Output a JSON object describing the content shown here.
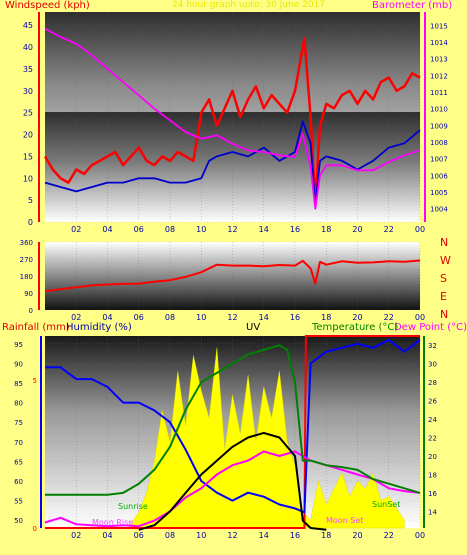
{
  "title_text": "24 hour graph upto: 30 June 2017",
  "labels": {
    "windspeed": "Windspeed (kph)",
    "barometer": "Barometer (mb)",
    "rainfall": "Rainfall (mm)",
    "humidity": "Humidity (%)",
    "uv": "UV",
    "temperature": "Temperature (°C)",
    "dewpoint": "Dew Point (°C)",
    "sunrise": "Sunrise",
    "sunset": "SunSet",
    "moonrise": "Moon Rise",
    "moonset": "Moon Set"
  },
  "compass": [
    "N",
    "W",
    "S",
    "E",
    "N"
  ],
  "colors": {
    "background": "#ffff88",
    "wind_gust": "#ff0000",
    "wind_avg": "#0000cc",
    "barometer": "#ff00ff",
    "wind_dir": "#ff0000",
    "humidity": "#0000ff",
    "temperature": "#ff00ff",
    "dewpoint": "#000000",
    "uv": "#ffff00",
    "rain": "#ff0000",
    "solar": "#008000",
    "label_red": "#ff0000",
    "label_blue": "#0000aa",
    "label_green": "#008000",
    "label_magenta": "#ff00ff"
  },
  "chart_data": [
    {
      "type": "line",
      "title": "24 hour graph upto: 30 June 2017",
      "x_ticks": [
        "02",
        "04",
        "06",
        "08",
        "10",
        "12",
        "14",
        "16",
        "18",
        "20",
        "22",
        "00"
      ],
      "y_left_label": "Windspeed (kph)",
      "y_left_ticks": [
        0,
        5,
        10,
        15,
        20,
        25,
        30,
        35,
        40,
        45
      ],
      "y_left_range": [
        0,
        48
      ],
      "y_right_label": "Barometer (mb)",
      "y_right_ticks": [
        1004,
        1005,
        1006,
        1007,
        1008,
        1009,
        1010,
        1011,
        1012,
        1013,
        1014,
        1015
      ],
      "y_right_range": [
        1003.2,
        1015.8
      ],
      "series": [
        {
          "name": "Windspeed (kph)",
          "axis": "left",
          "color": "#ff0000",
          "x": [
            0,
            0.5,
            1,
            1.5,
            2,
            2.5,
            3,
            3.5,
            4,
            4.5,
            5,
            5.5,
            6,
            6.5,
            7,
            7.5,
            8,
            8.5,
            9,
            9.5,
            10,
            10.5,
            11,
            11.5,
            12,
            12.5,
            13,
            13.5,
            14,
            14.5,
            15,
            15.5,
            16,
            16.3,
            16.6,
            17,
            17.3,
            17.6,
            18,
            18.5,
            19,
            19.5,
            20,
            20.5,
            21,
            21.5,
            22,
            22.5,
            23,
            23.5,
            24
          ],
          "values": [
            15,
            12,
            10,
            9,
            12,
            11,
            13,
            14,
            15,
            16,
            13,
            15,
            17,
            14,
            13,
            15,
            14,
            16,
            15,
            14,
            25,
            28,
            22,
            26,
            30,
            24,
            28,
            31,
            26,
            29,
            27,
            25,
            30,
            36,
            42,
            24,
            5,
            22,
            27,
            26,
            29,
            30,
            27,
            30,
            28,
            32,
            33,
            30,
            31,
            34,
            33
          ]
        },
        {
          "name": "Windspeed avg",
          "axis": "left",
          "color": "#0000cc",
          "x": [
            0,
            1,
            2,
            3,
            4,
            5,
            6,
            7,
            8,
            9,
            10,
            10.5,
            11,
            12,
            13,
            14,
            15,
            16,
            16.5,
            17,
            17.3,
            17.6,
            18,
            19,
            20,
            21,
            22,
            23,
            24
          ],
          "values": [
            9,
            8,
            7,
            8,
            9,
            9,
            10,
            10,
            9,
            9,
            10,
            14,
            15,
            16,
            15,
            17,
            14,
            16,
            23,
            18,
            4,
            14,
            15,
            14,
            12,
            14,
            17,
            18,
            21
          ]
        },
        {
          "name": "Barometer (mb)",
          "axis": "right",
          "color": "#ff00ff",
          "x": [
            0,
            1,
            2,
            3,
            4,
            5,
            6,
            7,
            8,
            9,
            10,
            11,
            12,
            13,
            14,
            15,
            16,
            16.5,
            17,
            17.3,
            17.6,
            18,
            19,
            20,
            21,
            22,
            23,
            24
          ],
          "values": [
            1014.8,
            1014.3,
            1013.9,
            1013.2,
            1012.4,
            1011.6,
            1010.8,
            1010.0,
            1009.3,
            1008.6,
            1008.2,
            1008.4,
            1007.9,
            1007.5,
            1007.4,
            1007.2,
            1007.1,
            1008.5,
            1006.5,
            1004.0,
            1006.0,
            1006.6,
            1006.6,
            1006.3,
            1006.3,
            1006.8,
            1007.2,
            1007.5
          ]
        }
      ]
    },
    {
      "type": "line",
      "x_ticks": [
        "02",
        "04",
        "06",
        "08",
        "10",
        "12",
        "14",
        "16",
        "18",
        "20",
        "22",
        "00"
      ],
      "y_ticks": [
        0,
        90,
        180,
        270,
        360
      ],
      "y_range": [
        0,
        360
      ],
      "series": [
        {
          "name": "Wind direction",
          "color": "#ff0000",
          "x": [
            0,
            1,
            2,
            3,
            4,
            5,
            6,
            7,
            8,
            9,
            10,
            11,
            12,
            13,
            14,
            15,
            16,
            16.5,
            17,
            17.3,
            17.6,
            18,
            19,
            20,
            21,
            22,
            23,
            24
          ],
          "values": [
            100,
            110,
            120,
            130,
            135,
            138,
            140,
            150,
            158,
            175,
            200,
            240,
            235,
            235,
            232,
            238,
            235,
            260,
            220,
            140,
            255,
            240,
            258,
            250,
            252,
            258,
            255,
            262
          ]
        }
      ]
    },
    {
      "type": "line",
      "x_ticks": [
        "02",
        "04",
        "06",
        "08",
        "10",
        "12",
        "14",
        "16",
        "18",
        "20",
        "22",
        "00"
      ],
      "y_left_label": "Humidity (%)",
      "y_left_ticks": [
        50,
        55,
        60,
        65,
        70,
        75,
        80,
        85,
        90,
        95
      ],
      "y_left_range": [
        48,
        97
      ],
      "y_rain_ticks": [
        0,
        5
      ],
      "y_right_label": "Temperature (°C)",
      "y_right_ticks": [
        14,
        16,
        18,
        20,
        22,
        24,
        26,
        28,
        30,
        32
      ],
      "y_right_range": [
        12.2,
        33
      ],
      "series": [
        {
          "name": "Humidity (%)",
          "axis": "left",
          "color": "#0000ff",
          "x": [
            0,
            1,
            2,
            3,
            4,
            5,
            6,
            7,
            8,
            9,
            10,
            11,
            12,
            13,
            14,
            15,
            16,
            16.6,
            17,
            18,
            19,
            20,
            21,
            22,
            23,
            24
          ],
          "values": [
            89,
            89,
            86,
            86,
            84,
            80,
            80,
            78,
            75,
            68,
            60,
            57,
            55,
            57,
            56,
            54,
            53,
            52,
            90,
            93,
            94,
            95,
            94,
            96,
            93,
            96
          ]
        },
        {
          "name": "Temperature (°C)",
          "axis": "right",
          "color": "#ff00ff",
          "x": [
            0,
            1,
            2,
            3,
            4,
            5,
            6,
            7,
            8,
            9,
            10,
            11,
            12,
            13,
            14,
            15,
            16,
            17,
            18,
            19,
            20,
            21,
            22,
            23,
            24
          ],
          "values": [
            12.8,
            13.3,
            12.6,
            12.5,
            12.4,
            12.5,
            12.4,
            13.0,
            14.0,
            15.5,
            16.5,
            18.0,
            19.0,
            19.5,
            20.5,
            20.0,
            20.5,
            19.5,
            19.0,
            18.5,
            18.0,
            17.5,
            16.5,
            16.2,
            16.0
          ]
        },
        {
          "name": "Dew Point (°C)",
          "axis": "right",
          "color": "#000000",
          "x": [
            0,
            1,
            2,
            3,
            4,
            5,
            6,
            7,
            8,
            9,
            10,
            11,
            12,
            13,
            14,
            15,
            16,
            16.5,
            17,
            18,
            19,
            20,
            21,
            22,
            23,
            24
          ],
          "values": [
            null,
            null,
            null,
            null,
            null,
            null,
            12.0,
            12.5,
            14.0,
            16.0,
            18.0,
            19.5,
            21.0,
            22.0,
            22.5,
            22.0,
            20.0,
            13.0,
            12.2,
            12.0,
            null,
            null,
            null,
            null,
            null,
            null
          ]
        },
        {
          "name": "Solar",
          "axis": "right",
          "color": "#008000",
          "x": [
            0,
            1,
            2,
            3,
            4,
            5,
            6,
            7,
            8,
            9,
            10,
            11,
            12,
            13,
            14,
            15,
            15.5,
            16,
            16.5,
            17,
            18,
            19,
            20,
            21,
            22,
            23,
            24
          ],
          "values": [
            15.8,
            15.8,
            15.8,
            15.8,
            15.8,
            16.0,
            17.0,
            18.5,
            21.0,
            25.0,
            28.0,
            29.0,
            30.0,
            31.0,
            31.5,
            32.0,
            31.5,
            28.0,
            19.5,
            19.5,
            19.0,
            18.8,
            18.5,
            17.5,
            17.0,
            16.5,
            16.0
          ]
        },
        {
          "name": "UV",
          "axis": "left",
          "color": "#ffff00",
          "x": [
            5.5,
            6,
            6.5,
            7,
            7.5,
            8,
            8.5,
            9,
            9.5,
            10,
            10.5,
            11,
            11.5,
            12,
            12.5,
            13,
            13.5,
            14,
            14.5,
            15,
            15.5,
            16,
            16.5,
            17,
            17.5,
            18,
            18.5,
            19,
            19.5,
            20,
            20.5,
            21,
            21.5,
            22,
            22.5,
            23
          ],
          "values": [
            49,
            52,
            57,
            65,
            78,
            70,
            88,
            74,
            92,
            83,
            76,
            94,
            68,
            82,
            72,
            87,
            70,
            84,
            76,
            88,
            70,
            64,
            52,
            50,
            60,
            54,
            58,
            62,
            56,
            60,
            58,
            62,
            55,
            56,
            53,
            50
          ]
        },
        {
          "name": "Rainfall (mm)",
          "color": "#ff0000",
          "x": [
            0,
            16.6,
            16.7,
            24
          ],
          "values": [
            0,
            0,
            6,
            6
          ]
        }
      ]
    }
  ]
}
